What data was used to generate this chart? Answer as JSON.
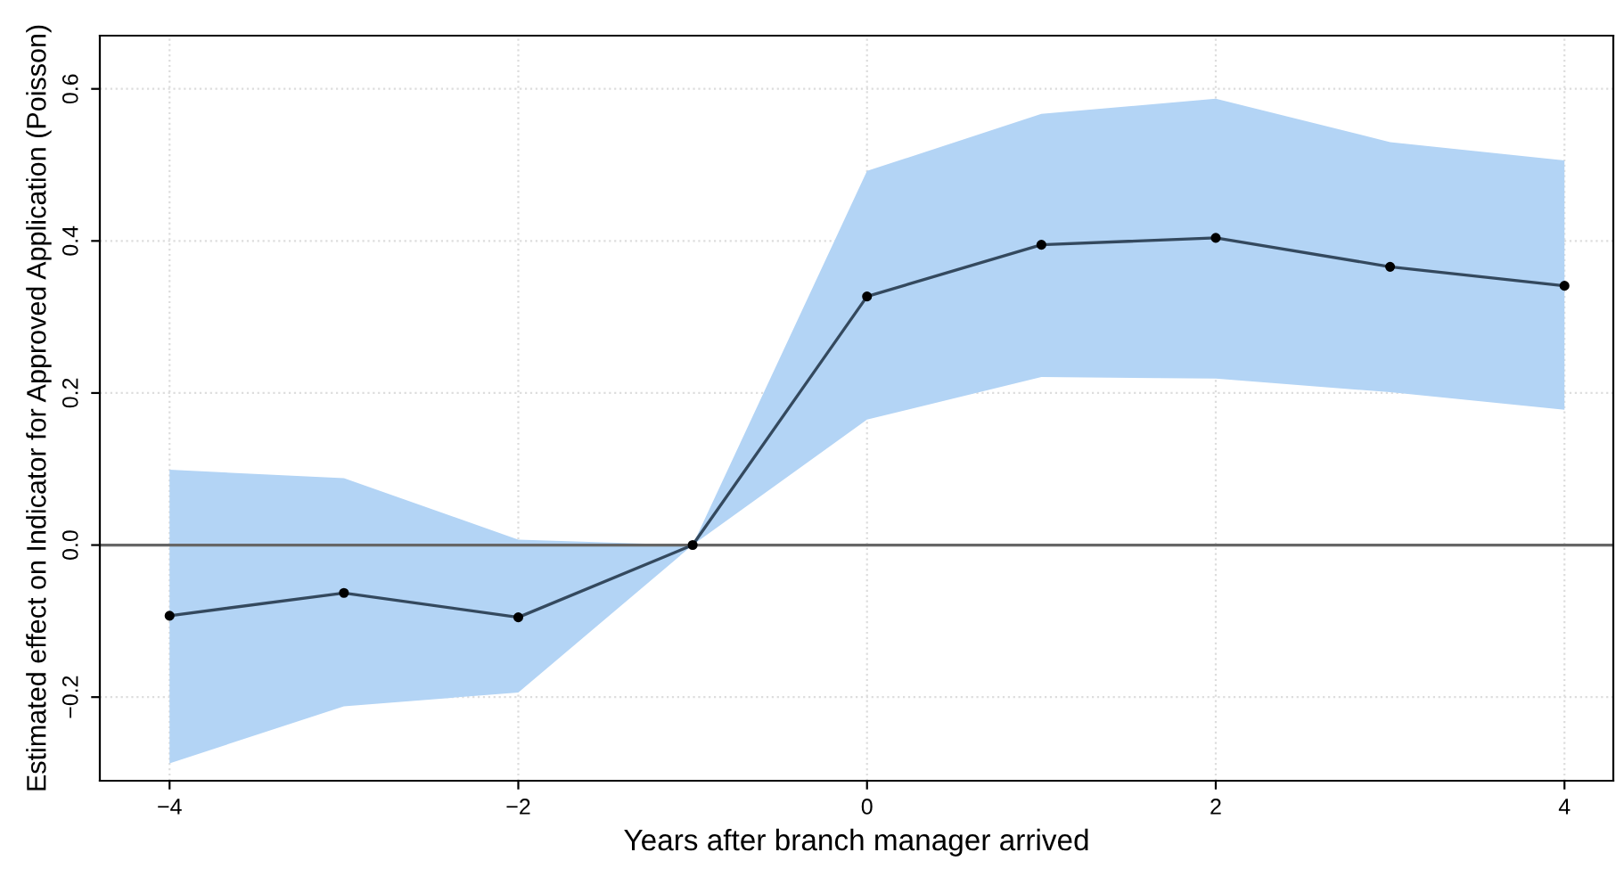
{
  "chart_data": {
    "type": "line",
    "xlabel": "Years after branch manager arrived",
    "ylabel": "Estimated effect on Indicator for Approved Application (Poisson)",
    "x": [
      -4,
      -3,
      -2,
      -1,
      0,
      1,
      2,
      3,
      4
    ],
    "series": [
      {
        "color": "#34495e",
        "values": [
          -0.093,
          -0.063,
          -0.095,
          0,
          0.327,
          0.395,
          0.404,
          0.366,
          0.341
        ],
        "lower": [
          -0.287,
          -0.212,
          -0.194,
          0,
          0.165,
          0.221,
          0.219,
          0.201,
          0.178
        ],
        "upper": [
          0.099,
          0.088,
          0.007,
          0,
          0.492,
          0.567,
          0.587,
          0.53,
          0.506
        ]
      }
    ],
    "xlim": [
      -4.4,
      4.28
    ],
    "ylim": [
      -0.31,
      0.67
    ],
    "xticks": [
      {
        "value": -4,
        "label": "−4"
      },
      {
        "value": -2,
        "label": "−2"
      },
      0,
      2,
      4
    ],
    "yticks": [
      {
        "value": -0.2,
        "label": "−0.2"
      },
      {
        "value": 0,
        "label": "0.0"
      },
      0.2,
      0.4,
      0.6
    ],
    "ref_lines": [
      {
        "axis": "y",
        "value": 0,
        "color": "#666666"
      }
    ],
    "grid": true,
    "marker": "circle",
    "line_style": "solid"
  }
}
